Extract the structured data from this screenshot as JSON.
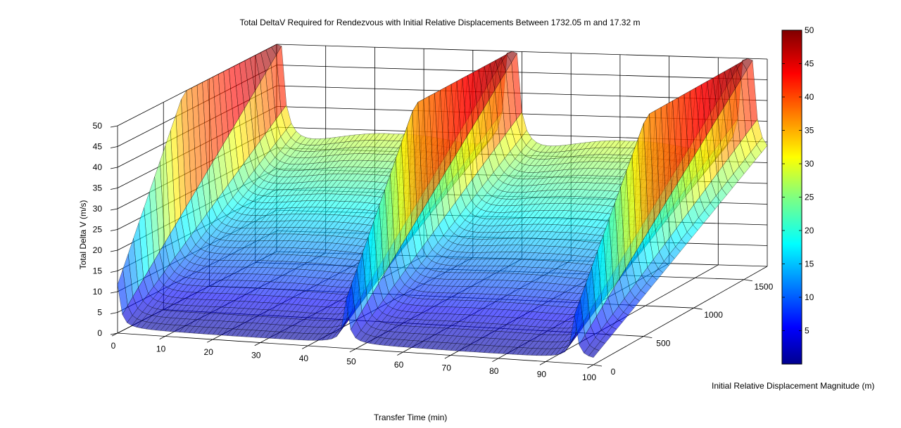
{
  "chart_data": {
    "type": "surface",
    "title": "Total DeltaV Required for Rendezvous with Initial Relative Displacements Between 1732.05 m and 17.32 m",
    "xlabel": "Transfer Time (min)",
    "ylabel": "Total Delta V (m/s)",
    "zlabel": "Initial Relative Displacement Magnitude (m)",
    "x_ticks": [
      0,
      10,
      20,
      30,
      40,
      50,
      60,
      70,
      80,
      90,
      100
    ],
    "z_ticks": [
      0,
      500,
      1000,
      1500
    ],
    "y_ticks": [
      0,
      5,
      10,
      15,
      20,
      25,
      30,
      35,
      40,
      45,
      50
    ],
    "xlim": [
      0,
      100
    ],
    "ylim": [
      0,
      50
    ],
    "zlim": [
      0,
      1732.05
    ],
    "colorbar": {
      "ticks": [
        5,
        10,
        15,
        20,
        25,
        30,
        35,
        40,
        45,
        50
      ],
      "range": [
        0,
        50
      ],
      "colormap": "jet"
    },
    "grid": true,
    "surface": {
      "peaks_at_transfer_time": [
        0,
        48,
        96
      ],
      "description_values": {
        "valley_min_at_max_displacement": 28,
        "valley_min_at_min_displacement": 1
      }
    }
  },
  "colors": {
    "background": "#ffffff",
    "grid": "#000000"
  }
}
